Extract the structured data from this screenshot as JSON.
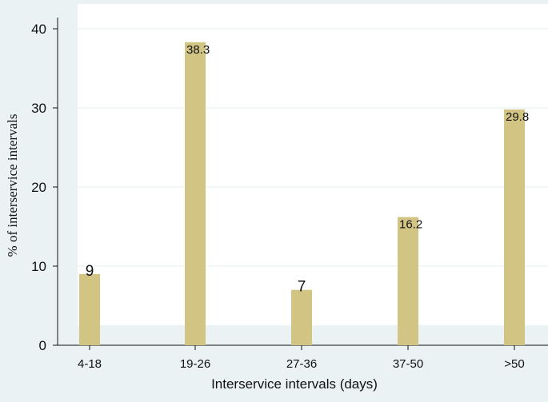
{
  "chart_data": {
    "type": "bar",
    "categories": [
      "4-18",
      "19-26",
      "27-36",
      "37-50",
      ">50"
    ],
    "values": [
      9,
      38.3,
      7,
      16.2,
      29.8
    ],
    "data_labels": [
      "9",
      "38.3",
      "7",
      "16.2",
      "29.8"
    ],
    "xlabel": "Interservice intervals (days)",
    "ylabel": "% of  interservice intervals",
    "ylim": [
      0,
      40
    ],
    "yticks": [
      0,
      10,
      20,
      30,
      40
    ],
    "grid": true,
    "bar_color": "#d2c483",
    "plot_background": "#ffffff",
    "page_background": "#eaf2f3"
  }
}
